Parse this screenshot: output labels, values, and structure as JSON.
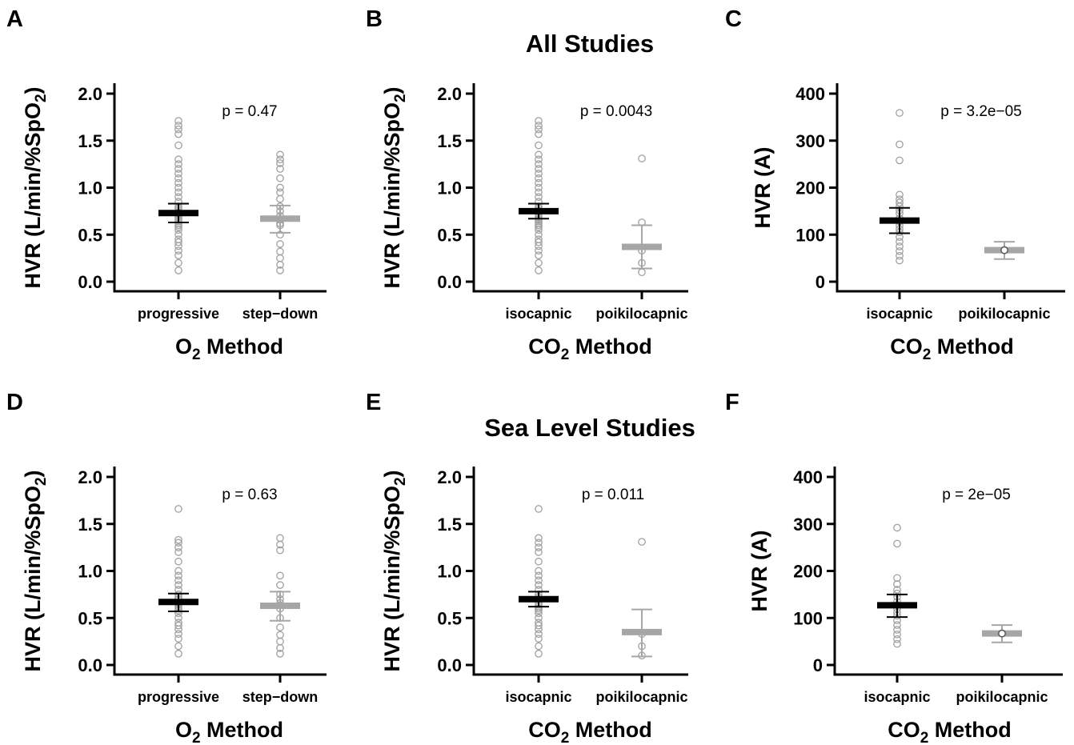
{
  "section_titles": {
    "top": "All Studies",
    "bottom": "Sea Level Studies"
  },
  "colors": {
    "group1": "#000000",
    "group2": "#a6a6a6",
    "point_stroke": "#a0a0a0"
  },
  "chart_data": [
    {
      "panel": "A",
      "type": "scatter",
      "ylabel_main": "HVR (L/min/%SpO",
      "ylabel_sub": "2",
      "ylabel_tail": ")",
      "xlabel_main": "O",
      "xlabel_sub": "2",
      "xlabel_tail": " Method",
      "categories": [
        "progressive",
        "step−down"
      ],
      "pvalue": "p = 0.47",
      "ylim": [
        0,
        2.0
      ],
      "yticks": [
        0.0,
        0.5,
        1.0,
        1.5,
        2.0
      ],
      "ytick_labels": [
        "0.0",
        "0.5",
        "1.0",
        "1.5",
        "2.0"
      ],
      "groups": [
        {
          "mean": 0.73,
          "err_low": 0.63,
          "err_high": 0.83,
          "points": [
            0.12,
            0.2,
            0.28,
            0.33,
            0.38,
            0.42,
            0.45,
            0.5,
            0.55,
            0.58,
            0.6,
            0.62,
            0.64,
            0.66,
            0.68,
            0.7,
            0.72,
            0.74,
            0.76,
            0.78,
            0.8,
            0.85,
            0.9,
            0.95,
            1.0,
            1.05,
            1.1,
            1.15,
            1.2,
            1.25,
            1.3,
            1.45,
            1.57,
            1.62,
            1.66,
            1.71
          ]
        },
        {
          "mean": 0.67,
          "err_low": 0.52,
          "err_high": 0.81,
          "points": [
            0.12,
            0.18,
            0.25,
            0.32,
            0.4,
            0.5,
            0.6,
            0.62,
            0.66,
            0.7,
            0.75,
            0.8,
            0.88,
            0.95,
            1.0,
            1.1,
            1.2,
            1.26,
            1.3,
            1.35
          ]
        }
      ]
    },
    {
      "panel": "B",
      "type": "scatter",
      "ylabel_main": "HVR (L/min/%SpO",
      "ylabel_sub": "2",
      "ylabel_tail": ")",
      "xlabel_main": "CO",
      "xlabel_sub": "2",
      "xlabel_tail": " Method",
      "categories": [
        "isocapnic",
        "poikilocapnic"
      ],
      "pvalue": "p = 0.0043",
      "ylim": [
        0,
        2.0
      ],
      "yticks": [
        0.0,
        0.5,
        1.0,
        1.5,
        2.0
      ],
      "ytick_labels": [
        "0.0",
        "0.5",
        "1.0",
        "1.5",
        "2.0"
      ],
      "groups": [
        {
          "mean": 0.75,
          "err_low": 0.67,
          "err_high": 0.83,
          "points": [
            0.12,
            0.2,
            0.28,
            0.33,
            0.38,
            0.42,
            0.45,
            0.5,
            0.55,
            0.58,
            0.6,
            0.62,
            0.64,
            0.66,
            0.68,
            0.7,
            0.72,
            0.74,
            0.76,
            0.78,
            0.8,
            0.85,
            0.9,
            0.95,
            1.0,
            1.05,
            1.1,
            1.15,
            1.2,
            1.25,
            1.3,
            1.35,
            1.45,
            1.57,
            1.62,
            1.66,
            1.71
          ]
        },
        {
          "mean": 0.37,
          "err_low": 0.14,
          "err_high": 0.6,
          "points": [
            0.1,
            0.2,
            0.33,
            0.63,
            1.31
          ]
        }
      ]
    },
    {
      "panel": "C",
      "type": "scatter",
      "ylabel_main": "HVR (A)",
      "ylabel_sub": "",
      "ylabel_tail": "",
      "xlabel_main": "CO",
      "xlabel_sub": "2",
      "xlabel_tail": " Method",
      "categories": [
        "isocapnic",
        "poikilocapnic"
      ],
      "pvalue": "p = 3.2e−05",
      "ylim": [
        0,
        400
      ],
      "yticks": [
        0,
        100,
        200,
        300,
        400
      ],
      "ytick_labels": [
        "0",
        "100",
        "200",
        "300",
        "400"
      ],
      "groups": [
        {
          "mean": 130,
          "err_low": 103,
          "err_high": 157,
          "points": [
            45,
            55,
            65,
            75,
            85,
            95,
            105,
            112,
            120,
            128,
            135,
            145,
            152,
            160,
            168,
            175,
            185,
            258,
            292,
            359
          ]
        },
        {
          "mean": 67,
          "err_low": 48,
          "err_high": 85,
          "points": [
            67
          ]
        }
      ]
    },
    {
      "panel": "D",
      "type": "scatter",
      "ylabel_main": "HVR (L/min/%SpO",
      "ylabel_sub": "2",
      "ylabel_tail": ")",
      "xlabel_main": "O",
      "xlabel_sub": "2",
      "xlabel_tail": " Method",
      "categories": [
        "progressive",
        "step−down"
      ],
      "pvalue": "p = 0.63",
      "ylim": [
        0,
        2.0
      ],
      "yticks": [
        0.0,
        0.5,
        1.0,
        1.5,
        2.0
      ],
      "ytick_labels": [
        "0.0",
        "0.5",
        "1.0",
        "1.5",
        "2.0"
      ],
      "groups": [
        {
          "mean": 0.67,
          "err_low": 0.57,
          "err_high": 0.76,
          "points": [
            0.12,
            0.2,
            0.28,
            0.33,
            0.38,
            0.42,
            0.45,
            0.5,
            0.55,
            0.58,
            0.6,
            0.62,
            0.64,
            0.66,
            0.7,
            0.72,
            0.75,
            0.8,
            0.85,
            0.9,
            0.95,
            1.0,
            1.1,
            1.2,
            1.25,
            1.3,
            1.33,
            1.66
          ]
        },
        {
          "mean": 0.63,
          "err_low": 0.47,
          "err_high": 0.78,
          "points": [
            0.12,
            0.18,
            0.25,
            0.32,
            0.4,
            0.5,
            0.6,
            0.66,
            0.7,
            0.75,
            0.85,
            0.95,
            1.22,
            1.28,
            1.35
          ]
        }
      ]
    },
    {
      "panel": "E",
      "type": "scatter",
      "ylabel_main": "HVR (L/min/%SpO",
      "ylabel_sub": "2",
      "ylabel_tail": ")",
      "xlabel_main": "CO",
      "xlabel_sub": "2",
      "xlabel_tail": " Method",
      "categories": [
        "isocapnic",
        "poikilocapnic"
      ],
      "pvalue": "p = 0.011",
      "ylim": [
        0,
        2.0
      ],
      "yticks": [
        0.0,
        0.5,
        1.0,
        1.5,
        2.0
      ],
      "ytick_labels": [
        "0.0",
        "0.5",
        "1.0",
        "1.5",
        "2.0"
      ],
      "groups": [
        {
          "mean": 0.7,
          "err_low": 0.62,
          "err_high": 0.78,
          "points": [
            0.12,
            0.2,
            0.28,
            0.33,
            0.38,
            0.42,
            0.45,
            0.5,
            0.55,
            0.58,
            0.6,
            0.62,
            0.64,
            0.66,
            0.7,
            0.72,
            0.75,
            0.8,
            0.85,
            0.9,
            0.95,
            1.0,
            1.1,
            1.2,
            1.25,
            1.3,
            1.35,
            1.66
          ]
        },
        {
          "mean": 0.35,
          "err_low": 0.09,
          "err_high": 0.59,
          "points": [
            0.1,
            0.2,
            0.33,
            1.31
          ]
        }
      ]
    },
    {
      "panel": "F",
      "type": "scatter",
      "ylabel_main": "HVR (A)",
      "ylabel_sub": "",
      "ylabel_tail": "",
      "xlabel_main": "CO",
      "xlabel_sub": "2",
      "xlabel_tail": " Method",
      "categories": [
        "isocapnic",
        "poikilocapnic"
      ],
      "pvalue": "p = 2e−05",
      "ylim": [
        0,
        400
      ],
      "yticks": [
        0,
        100,
        200,
        300,
        400
      ],
      "ytick_labels": [
        "0",
        "100",
        "200",
        "300",
        "400"
      ],
      "groups": [
        {
          "mean": 127,
          "err_low": 102,
          "err_high": 150,
          "points": [
            45,
            55,
            65,
            75,
            85,
            95,
            105,
            112,
            120,
            128,
            135,
            145,
            152,
            160,
            172,
            185,
            258,
            292
          ]
        },
        {
          "mean": 67,
          "err_low": 48,
          "err_high": 85,
          "points": [
            67
          ]
        }
      ]
    }
  ]
}
